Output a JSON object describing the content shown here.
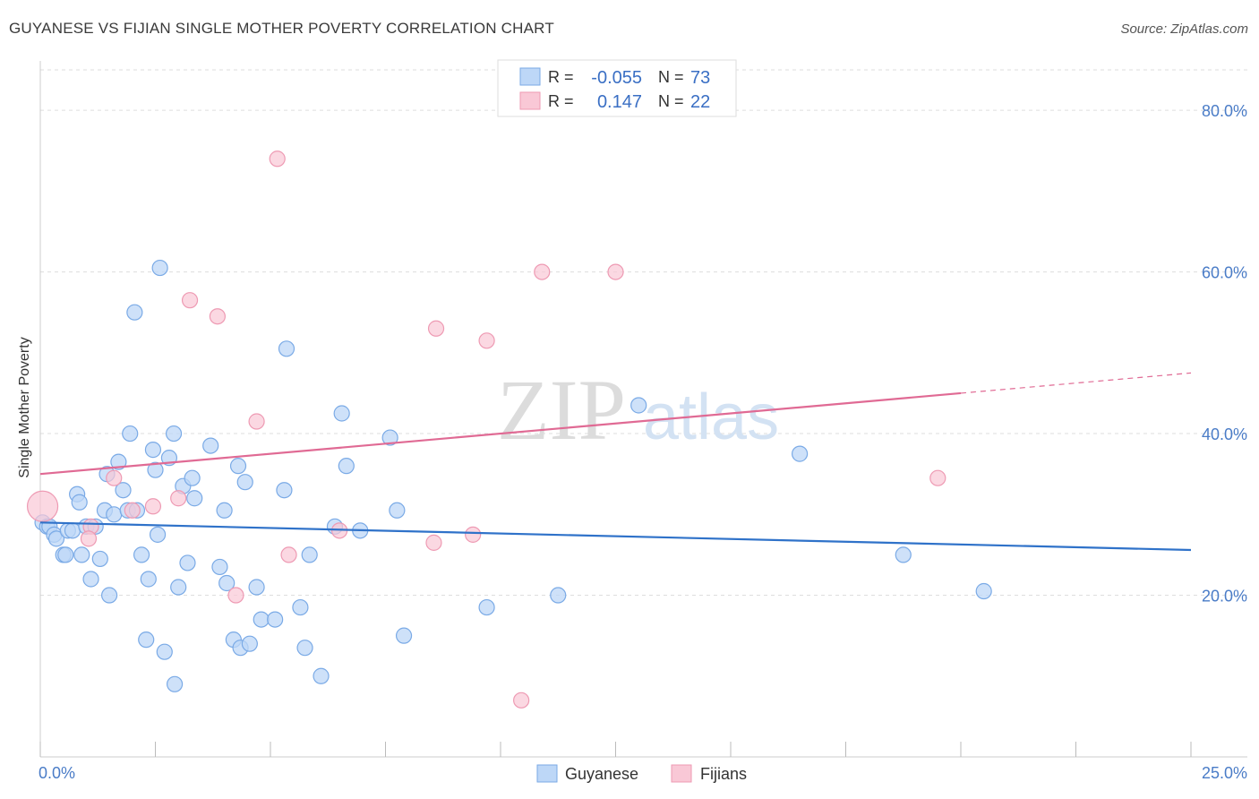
{
  "header": {
    "title": "GUYANESE VS FIJIAN SINGLE MOTHER POVERTY CORRELATION CHART",
    "source": "Source: ZipAtlas.com"
  },
  "watermark": {
    "zip": "ZIP",
    "atlas": "atlas"
  },
  "legend_top": {
    "rows": [
      {
        "r_label": "R =",
        "r_value": "-0.055",
        "n_label": "N =",
        "n_value": "73"
      },
      {
        "r_label": "R =",
        "r_value": "0.147",
        "n_label": "N =",
        "n_value": "22"
      }
    ]
  },
  "colors": {
    "guyanese_fill": "#bdd7f7",
    "guyanese_stroke": "#7aaae6",
    "guyanese_line": "#2f72c9",
    "fijian_fill": "#f9c8d6",
    "fijian_stroke": "#ee9ab3",
    "fijian_line": "#e06a94",
    "grid": "#dddddd",
    "tick_text": "#4a7cc7"
  },
  "chart_data": {
    "type": "scatter",
    "title": "GUYANESE VS FIJIAN SINGLE MOTHER POVERTY CORRELATION CHART",
    "xlabel": "",
    "ylabel": "Single Mother Poverty",
    "xlim": [
      0,
      25
    ],
    "ylim": [
      0,
      85
    ],
    "x_tick_labels": [
      "0.0%",
      "25.0%"
    ],
    "y_ticks": [
      20,
      40,
      60,
      80
    ],
    "y_tick_labels": [
      "20.0%",
      "40.0%",
      "60.0%",
      "80.0%"
    ],
    "grid": true,
    "legend": [
      "Guyanese",
      "Fijians"
    ],
    "series": [
      {
        "name": "Guyanese",
        "r": -0.055,
        "n": 73,
        "trend": {
          "x0": 0,
          "y0": 29.0,
          "x1": 25,
          "y1": 25.6
        },
        "points": [
          [
            0.05,
            29
          ],
          [
            0.15,
            28.5
          ],
          [
            0.2,
            28.5
          ],
          [
            0.3,
            27.5
          ],
          [
            0.35,
            27
          ],
          [
            0.5,
            25
          ],
          [
            0.55,
            25
          ],
          [
            0.6,
            28
          ],
          [
            0.7,
            28
          ],
          [
            0.8,
            32.5
          ],
          [
            0.85,
            31.5
          ],
          [
            0.9,
            25
          ],
          [
            1.0,
            28.5
          ],
          [
            1.1,
            22
          ],
          [
            1.2,
            28.5
          ],
          [
            1.3,
            24.5
          ],
          [
            1.4,
            30.5
          ],
          [
            1.45,
            35
          ],
          [
            1.5,
            20
          ],
          [
            1.6,
            30
          ],
          [
            1.7,
            36.5
          ],
          [
            1.8,
            33
          ],
          [
            1.9,
            30.5
          ],
          [
            1.95,
            40
          ],
          [
            2.05,
            55
          ],
          [
            2.1,
            30.5
          ],
          [
            2.2,
            25
          ],
          [
            2.3,
            14.5
          ],
          [
            2.35,
            22
          ],
          [
            2.45,
            38
          ],
          [
            2.5,
            35.5
          ],
          [
            2.55,
            27.5
          ],
          [
            2.6,
            60.5
          ],
          [
            2.7,
            13
          ],
          [
            2.8,
            37
          ],
          [
            2.9,
            40
          ],
          [
            2.92,
            9
          ],
          [
            3.0,
            21
          ],
          [
            3.1,
            33.5
          ],
          [
            3.2,
            24
          ],
          [
            3.3,
            34.5
          ],
          [
            3.35,
            32
          ],
          [
            3.7,
            38.5
          ],
          [
            3.9,
            23.5
          ],
          [
            4.0,
            30.5
          ],
          [
            4.05,
            21.5
          ],
          [
            4.2,
            14.5
          ],
          [
            4.3,
            36
          ],
          [
            4.35,
            13.5
          ],
          [
            4.45,
            34
          ],
          [
            4.55,
            14
          ],
          [
            4.7,
            21
          ],
          [
            4.8,
            17
          ],
          [
            5.1,
            17
          ],
          [
            5.3,
            33
          ],
          [
            5.35,
            50.5
          ],
          [
            5.65,
            18.5
          ],
          [
            5.75,
            13.5
          ],
          [
            5.85,
            25
          ],
          [
            6.1,
            10
          ],
          [
            6.4,
            28.5
          ],
          [
            6.55,
            42.5
          ],
          [
            6.65,
            36
          ],
          [
            6.95,
            28
          ],
          [
            7.6,
            39.5
          ],
          [
            7.75,
            30.5
          ],
          [
            7.9,
            15
          ],
          [
            9.7,
            18.5
          ],
          [
            11.25,
            20
          ],
          [
            13.0,
            43.5
          ],
          [
            16.5,
            37.5
          ],
          [
            18.75,
            25
          ],
          [
            20.5,
            20.5
          ]
        ]
      },
      {
        "name": "Fijians",
        "r": 0.147,
        "n": 22,
        "trend": {
          "x0": 0,
          "y0": 35.0,
          "x1": 20,
          "y1": 45.0,
          "x_dash_end": 25,
          "y_dash_end": 47.5
        },
        "points": [
          [
            0.05,
            31
          ],
          [
            1.1,
            28.5
          ],
          [
            1.05,
            27
          ],
          [
            1.6,
            34.5
          ],
          [
            2.0,
            30.5
          ],
          [
            2.45,
            31
          ],
          [
            3.0,
            32
          ],
          [
            3.25,
            56.5
          ],
          [
            3.85,
            54.5
          ],
          [
            4.25,
            20
          ],
          [
            4.7,
            41.5
          ],
          [
            5.15,
            74
          ],
          [
            5.4,
            25
          ],
          [
            6.5,
            28
          ],
          [
            8.6,
            53
          ],
          [
            8.55,
            26.5
          ],
          [
            9.4,
            27.5
          ],
          [
            9.7,
            51.5
          ],
          [
            10.45,
            7
          ],
          [
            10.9,
            60
          ],
          [
            12.5,
            60
          ],
          [
            19.5,
            34.5
          ]
        ]
      }
    ]
  }
}
